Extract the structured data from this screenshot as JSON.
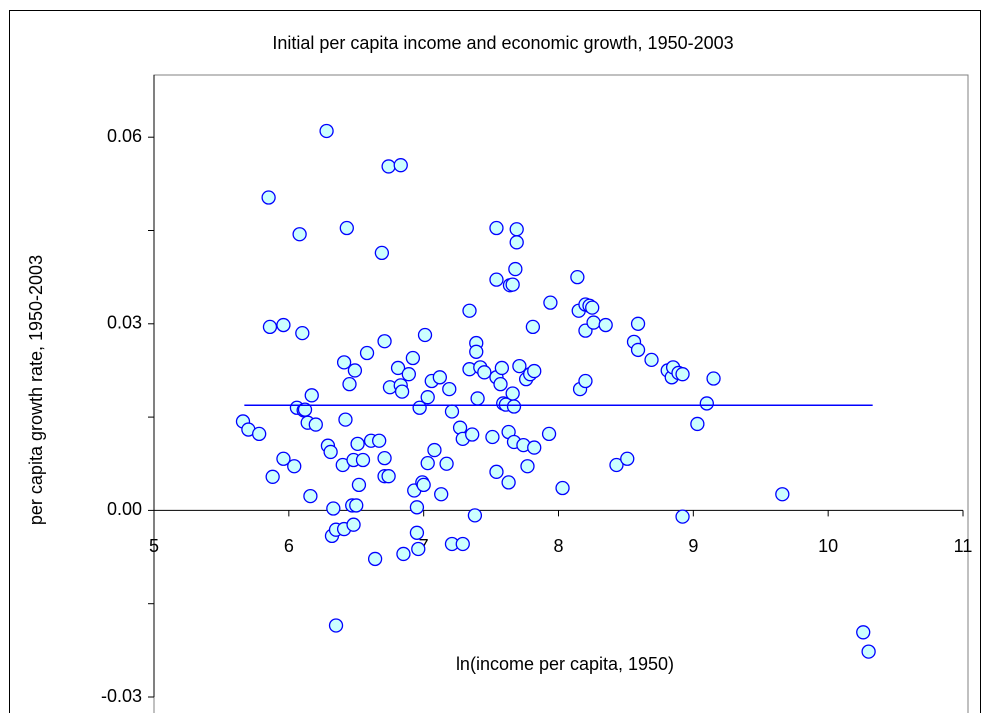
{
  "chart_data": {
    "type": "scatter",
    "title": "Initial per capita income and economic growth, 1950-2003",
    "x_label": "ln(income per capita, 1950)",
    "y_label": "per capita growth rate, 1950-2003",
    "xlim": [
      5,
      11
    ],
    "xticks": [
      5,
      6,
      7,
      8,
      9,
      10,
      11
    ],
    "ylim": [
      -0.03,
      0.07
    ],
    "yticks": [
      -0.03,
      {
        "value": 0,
        "label": "0.00"
      },
      0.03,
      0.06
    ],
    "y_minor_ticks": [
      -0.015,
      0.015,
      0.045
    ],
    "color": "#0000ff",
    "marker_fill": "#ccffff",
    "x": [
      5.66,
      5.7,
      5.78,
      5.85,
      5.86,
      5.88,
      5.96,
      5.96,
      6.04,
      6.06,
      6.08,
      6.1,
      6.11,
      6.12,
      6.14,
      6.17,
      6.16,
      6.2,
      6.28,
      6.29,
      6.31,
      6.32,
      6.35,
      6.35,
      6.33,
      6.42,
      6.41,
      6.43,
      6.4,
      6.41,
      6.45,
      6.47,
      6.48,
      6.49,
      6.48,
      6.5,
      6.51,
      6.52,
      6.55,
      6.58,
      6.61,
      6.64,
      6.67,
      6.69,
      6.71,
      6.71,
      6.71,
      6.74,
      6.74,
      6.75,
      6.81,
      6.83,
      6.83,
      6.84,
      6.85,
      6.89,
      6.92,
      6.93,
      6.95,
      6.95,
      6.96,
      6.97,
      6.99,
      7.0,
      7.01,
      7.03,
      7.03,
      7.06,
      7.08,
      7.12,
      7.13,
      7.17,
      7.19,
      7.21,
      7.21,
      7.27,
      7.29,
      7.29,
      7.34,
      7.34,
      7.36,
      7.38,
      7.39,
      7.39,
      7.4,
      7.42,
      7.45,
      7.51,
      7.54,
      7.54,
      7.54,
      7.54,
      7.57,
      7.58,
      7.59,
      7.61,
      7.63,
      7.63,
      7.64,
      7.66,
      7.66,
      7.67,
      7.67,
      7.68,
      7.69,
      7.69,
      7.71,
      7.74,
      7.76,
      7.77,
      7.79,
      7.81,
      7.82,
      7.82,
      7.93,
      7.94,
      8.03,
      8.14,
      8.15,
      8.16,
      8.2,
      8.2,
      8.2,
      8.23,
      8.25,
      8.26,
      8.35,
      8.43,
      8.51,
      8.56,
      8.59,
      8.59,
      8.69,
      8.81,
      8.84,
      8.85,
      8.89,
      8.92,
      8.92,
      9.03,
      9.1,
      9.15,
      9.66,
      10.26,
      10.3
    ],
    "values": [
      0.0143,
      0.013,
      0.0123,
      0.0503,
      0.0295,
      0.0054,
      0.0298,
      0.0083,
      0.0071,
      0.0165,
      0.0444,
      0.0285,
      0.0161,
      0.0162,
      0.0141,
      0.0185,
      0.0023,
      0.0138,
      0.061,
      0.0104,
      0.0094,
      -0.0041,
      -0.0185,
      -0.0031,
      0.0003,
      0.0146,
      0.0238,
      0.0454,
      0.0073,
      -0.003,
      0.0203,
      0.0008,
      -0.0023,
      0.0225,
      0.0081,
      0.0008,
      0.0107,
      0.0041,
      0.0081,
      0.0253,
      0.0112,
      -0.0078,
      0.0112,
      0.0414,
      0.0084,
      0.0272,
      0.0055,
      0.0055,
      0.0553,
      0.0198,
      0.0229,
      0.0555,
      0.0201,
      0.0191,
      -0.007,
      0.0219,
      0.0245,
      0.0032,
      0.0005,
      -0.0036,
      -0.0062,
      0.0165,
      0.0045,
      0.0041,
      0.0282,
      0.0076,
      0.0182,
      0.0208,
      0.0097,
      0.0214,
      0.0026,
      0.0075,
      0.0195,
      -0.0054,
      0.0159,
      0.0133,
      -0.0054,
      0.0115,
      0.0227,
      0.0321,
      0.0122,
      -0.0008,
      0.0269,
      0.0255,
      0.018,
      0.023,
      0.0222,
      0.0118,
      0.0454,
      0.0371,
      0.0214,
      0.0062,
      0.0203,
      0.0229,
      0.0172,
      0.017,
      0.0045,
      0.0126,
      0.0362,
      0.0363,
      0.0188,
      0.0167,
      0.011,
      0.0388,
      0.0452,
      0.0431,
      0.0232,
      0.0105,
      0.0211,
      0.0071,
      0.0219,
      0.0295,
      0.0224,
      0.0101,
      0.0123,
      0.0334,
      0.0036,
      0.0375,
      0.0321,
      0.0195,
      0.0208,
      0.0289,
      0.0331,
      0.0329,
      0.0326,
      0.0302,
      0.0298,
      0.0073,
      0.0083,
      0.0271,
      0.03,
      0.0258,
      0.0242,
      0.0225,
      0.0214,
      0.023,
      0.0221,
      -0.001,
      0.0219,
      0.0139,
      0.0172,
      0.0212,
      0.0026,
      -0.0196,
      -0.0227
    ],
    "fit_line": {
      "x": [
        5.67,
        10.33
      ],
      "y": [
        0.0169,
        0.0169
      ]
    }
  }
}
